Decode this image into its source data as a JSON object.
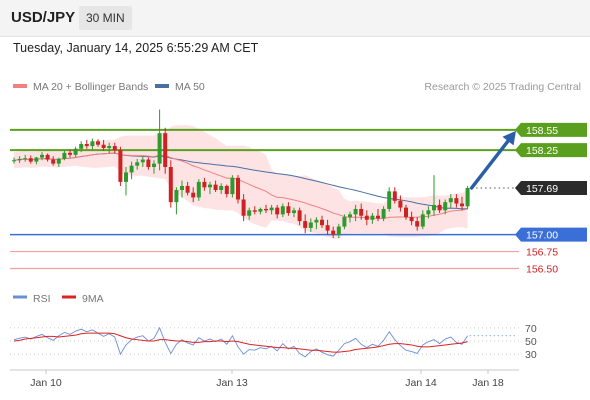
{
  "header": {
    "symbol": "USD/JPY",
    "timeframe": "30 MIN",
    "datetime": "Tuesday, January 14, 2025 6:55:29 AM CET"
  },
  "legend": {
    "ma20": "MA 20 + Bollinger Bands",
    "ma50": "MA 50",
    "credit": "Research © 2025 Trading Central",
    "rsi": "RSI",
    "rsi_ma": "9MA"
  },
  "colors": {
    "ma20": "#f08080",
    "bollinger_fill": "#fde3e3",
    "ma50": "#4a6fa5",
    "bull": "#2e9a2e",
    "bear": "#cc2222",
    "resistance": "#5aa01e",
    "support": "#3a6fd8",
    "support_light": "#f2a0a0",
    "last": "#2b2b2b",
    "arrow": "#2a5fa8",
    "rsi": "#6a8fd8",
    "rsi_ma": "#dd2222"
  },
  "chart_data": [
    {
      "type": "candlestick",
      "ylim": [
        156.3,
        159.05
      ],
      "x_ticks": [
        "Jan 10",
        "Jan 13",
        "Jan 14",
        "Jan 18"
      ],
      "levels": [
        {
          "value": 158.55,
          "label": "158.55",
          "kind": "resistance"
        },
        {
          "value": 158.25,
          "label": "158.25",
          "kind": "resistance"
        },
        {
          "value": 157.69,
          "label": "157.69",
          "kind": "last"
        },
        {
          "value": 157.0,
          "label": "157.00",
          "kind": "support"
        },
        {
          "value": 156.75,
          "label": "156.75",
          "kind": "support-light"
        },
        {
          "value": 156.5,
          "label": "156.50",
          "kind": "support-light"
        }
      ],
      "candles": [
        [
          158.09,
          158.14,
          158.05,
          158.1
        ],
        [
          158.1,
          158.16,
          158.06,
          158.12
        ],
        [
          158.12,
          158.18,
          158.08,
          158.13
        ],
        [
          158.13,
          158.17,
          158.05,
          158.08
        ],
        [
          158.08,
          158.15,
          158.04,
          158.14
        ],
        [
          158.14,
          158.22,
          158.1,
          158.18
        ],
        [
          158.18,
          158.2,
          158.08,
          158.11
        ],
        [
          158.11,
          158.16,
          158.02,
          158.05
        ],
        [
          158.05,
          158.14,
          158.0,
          158.12
        ],
        [
          158.12,
          158.24,
          158.1,
          158.21
        ],
        [
          158.21,
          158.26,
          158.14,
          158.18
        ],
        [
          158.18,
          158.3,
          158.15,
          158.27
        ],
        [
          158.27,
          158.38,
          158.22,
          158.34
        ],
        [
          158.34,
          158.4,
          158.27,
          158.31
        ],
        [
          158.31,
          158.42,
          158.26,
          158.38
        ],
        [
          158.38,
          158.41,
          158.3,
          158.33
        ],
        [
          158.33,
          158.4,
          158.24,
          158.28
        ],
        [
          158.28,
          158.36,
          158.2,
          158.31
        ],
        [
          158.31,
          158.36,
          158.2,
          158.25
        ],
        [
          158.25,
          158.3,
          157.72,
          157.78
        ],
        [
          157.78,
          158.0,
          157.58,
          157.92
        ],
        [
          157.92,
          158.08,
          157.82,
          158.02
        ],
        [
          158.02,
          158.12,
          157.96,
          158.07
        ],
        [
          158.07,
          158.16,
          158.0,
          158.11
        ],
        [
          158.11,
          158.14,
          157.96,
          158.0
        ],
        [
          158.0,
          158.1,
          157.9,
          158.05
        ],
        [
          158.05,
          158.85,
          157.95,
          158.5
        ],
        [
          158.5,
          158.58,
          157.9,
          158.0
        ],
        [
          158.0,
          158.1,
          157.4,
          157.48
        ],
        [
          157.48,
          157.7,
          157.3,
          157.66
        ],
        [
          157.66,
          157.8,
          157.55,
          157.72
        ],
        [
          157.72,
          157.78,
          157.58,
          157.62
        ],
        [
          157.62,
          157.7,
          157.48,
          157.55
        ],
        [
          157.55,
          157.82,
          157.5,
          157.78
        ],
        [
          157.78,
          157.84,
          157.65,
          157.7
        ],
        [
          157.7,
          157.78,
          157.6,
          157.74
        ],
        [
          157.74,
          157.8,
          157.63,
          157.66
        ],
        [
          157.66,
          157.76,
          157.6,
          157.72
        ],
        [
          157.72,
          157.74,
          157.55,
          157.6
        ],
        [
          157.6,
          157.88,
          157.55,
          157.84
        ],
        [
          157.84,
          157.88,
          157.46,
          157.52
        ],
        [
          157.52,
          157.6,
          157.2,
          157.28
        ],
        [
          157.28,
          157.4,
          157.22,
          157.36
        ],
        [
          157.36,
          157.42,
          157.3,
          157.34
        ],
        [
          157.34,
          157.4,
          157.3,
          157.38
        ],
        [
          157.38,
          157.44,
          157.32,
          157.36
        ],
        [
          157.36,
          157.44,
          157.3,
          157.4
        ],
        [
          157.4,
          157.44,
          157.24,
          157.3
        ],
        [
          157.3,
          157.46,
          157.26,
          157.42
        ],
        [
          157.42,
          157.48,
          157.28,
          157.32
        ],
        [
          157.32,
          157.4,
          157.26,
          157.36
        ],
        [
          157.36,
          157.4,
          157.14,
          157.2
        ],
        [
          157.2,
          157.3,
          157.02,
          157.1
        ],
        [
          157.1,
          157.24,
          157.04,
          157.18
        ],
        [
          157.18,
          157.26,
          157.08,
          157.22
        ],
        [
          157.22,
          157.28,
          157.1,
          157.14
        ],
        [
          157.14,
          157.22,
          157.0,
          157.06
        ],
        [
          157.06,
          157.12,
          156.95,
          157.0
        ],
        [
          157.0,
          157.16,
          156.95,
          157.12
        ],
        [
          157.12,
          157.3,
          157.08,
          157.26
        ],
        [
          157.26,
          157.34,
          157.18,
          157.3
        ],
        [
          157.3,
          157.44,
          157.2,
          157.38
        ],
        [
          157.38,
          157.46,
          157.22,
          157.28
        ],
        [
          157.28,
          157.36,
          157.14,
          157.22
        ],
        [
          157.22,
          157.32,
          157.16,
          157.28
        ],
        [
          157.28,
          157.38,
          157.2,
          157.24
        ],
        [
          157.24,
          157.42,
          157.2,
          157.38
        ],
        [
          157.38,
          157.7,
          157.34,
          157.64
        ],
        [
          157.64,
          157.7,
          157.46,
          157.5
        ],
        [
          157.5,
          157.58,
          157.34,
          157.4
        ],
        [
          157.4,
          157.44,
          157.22,
          157.26
        ],
        [
          157.26,
          157.34,
          157.14,
          157.2
        ],
        [
          157.2,
          157.26,
          157.06,
          157.12
        ],
        [
          157.12,
          157.36,
          157.08,
          157.3
        ],
        [
          157.3,
          157.42,
          157.24,
          157.36
        ],
        [
          157.36,
          157.88,
          157.28,
          157.44
        ],
        [
          157.44,
          157.52,
          157.32,
          157.36
        ],
        [
          157.36,
          157.52,
          157.3,
          157.48
        ],
        [
          157.48,
          157.6,
          157.4,
          157.54
        ],
        [
          157.54,
          157.6,
          157.4,
          157.46
        ],
        [
          157.46,
          157.56,
          157.36,
          157.42
        ],
        [
          157.42,
          157.72,
          157.38,
          157.69
        ]
      ]
    },
    {
      "type": "line",
      "ylim": [
        15,
        85
      ],
      "y_ticks": [
        70,
        50,
        30
      ],
      "series": [
        {
          "name": "RSI",
          "values": [
            52,
            54,
            56,
            53,
            57,
            60,
            55,
            51,
            58,
            63,
            60,
            65,
            68,
            64,
            67,
            62,
            57,
            61,
            56,
            30,
            44,
            52,
            56,
            58,
            50,
            54,
            70,
            48,
            31,
            45,
            52,
            47,
            44,
            55,
            50,
            53,
            49,
            53,
            45,
            58,
            41,
            30,
            37,
            36,
            40,
            38,
            42,
            35,
            46,
            38,
            42,
            31,
            26,
            34,
            38,
            33,
            29,
            27,
            36,
            46,
            49,
            54,
            45,
            40,
            45,
            42,
            51,
            64,
            52,
            43,
            36,
            34,
            31,
            44,
            49,
            52,
            46,
            53,
            56,
            48,
            45,
            58
          ]
        },
        {
          "name": "9MA",
          "values": [
            50,
            51,
            53,
            54,
            55,
            56,
            57,
            57,
            56,
            57,
            58,
            59,
            61,
            62,
            62,
            62,
            62,
            62,
            61,
            58,
            55,
            53,
            52,
            51,
            50,
            50,
            52,
            52,
            51,
            50,
            50,
            49,
            48,
            48,
            49,
            49,
            50,
            50,
            49,
            50,
            49,
            47,
            45,
            44,
            43,
            42,
            41,
            40,
            40,
            39,
            39,
            38,
            37,
            36,
            36,
            35,
            34,
            33,
            33,
            34,
            35,
            37,
            38,
            39,
            40,
            41,
            43,
            45,
            46,
            46,
            45,
            44,
            42,
            41,
            41,
            42,
            43,
            44,
            45,
            46,
            47,
            49
          ]
        }
      ]
    }
  ]
}
